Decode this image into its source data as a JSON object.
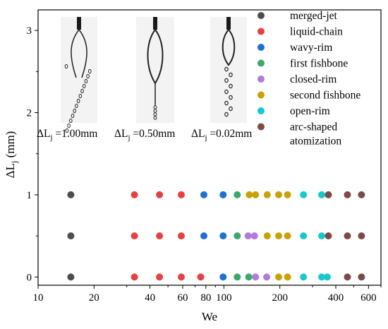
{
  "chart_data": {
    "type": "scatter",
    "xlabel": "We",
    "ylabel": {
      "main": "ΔL",
      "sub": "j",
      "unit": " (mm)"
    },
    "x_scale": "log",
    "xlim": [
      10,
      700
    ],
    "ylim": [
      -0.1,
      3.25
    ],
    "x_ticks": [
      10,
      20,
      40,
      60,
      80,
      100,
      200,
      400,
      600
    ],
    "x_tick_labels": [
      "10",
      "20",
      "40",
      "60",
      "80",
      "100",
      "200",
      "400",
      "600"
    ],
    "y_ticks": [
      0,
      1,
      2,
      3
    ],
    "y_tick_labels": [
      "0",
      "1",
      "2",
      "3"
    ],
    "legend_position": "top-right",
    "series": [
      {
        "name": "merged-jet",
        "color": "#4d4d4d",
        "points": [
          [
            15,
            1
          ],
          [
            15,
            0.5
          ],
          [
            15,
            0
          ]
        ]
      },
      {
        "name": "liquid-chain",
        "color": "#e84040",
        "points": [
          [
            33,
            1
          ],
          [
            45,
            1
          ],
          [
            59,
            1
          ],
          [
            33,
            0.5
          ],
          [
            45,
            0.5
          ],
          [
            59,
            0.5
          ],
          [
            33,
            0
          ],
          [
            45,
            0
          ],
          [
            59,
            0
          ],
          [
            75,
            0
          ]
        ]
      },
      {
        "name": "wavy-rim",
        "color": "#1f6fd8",
        "points": [
          [
            78,
            1
          ],
          [
            99,
            1
          ],
          [
            78,
            0.5
          ],
          [
            99,
            0.5
          ],
          [
            99,
            0
          ]
        ]
      },
      {
        "name": "first fishbone",
        "color": "#3aa86b",
        "points": [
          [
            118,
            1
          ],
          [
            118,
            0.5
          ],
          [
            118,
            0
          ],
          [
            136,
            0
          ]
        ]
      },
      {
        "name": "closed-rim",
        "color": "#b27ad9",
        "points": [
          [
            135,
            0.5
          ],
          [
            146,
            0.5
          ],
          [
            148,
            0
          ],
          [
            170,
            0
          ]
        ]
      },
      {
        "name": "second fishbone",
        "color": "#c9a209",
        "points": [
          [
            137,
            1
          ],
          [
            148,
            1
          ],
          [
            171,
            1
          ],
          [
            197,
            1
          ],
          [
            220,
            1
          ],
          [
            171,
            0.5
          ],
          [
            197,
            0.5
          ],
          [
            220,
            0.5
          ],
          [
            197,
            0
          ],
          [
            220,
            0
          ]
        ]
      },
      {
        "name": "open-rim",
        "color": "#17c9cc",
        "points": [
          [
            268,
            1
          ],
          [
            336,
            1
          ],
          [
            268,
            0.5
          ],
          [
            336,
            0.5
          ],
          [
            268,
            0
          ],
          [
            336,
            0
          ],
          [
            360,
            0
          ]
        ]
      },
      {
        "name": "arc-shaped atomization",
        "legend_lines": [
          "arc-shaped",
          "atomization"
        ],
        "color": "#7d4a4a",
        "points": [
          [
            365,
            1
          ],
          [
            462,
            1
          ],
          [
            550,
            1
          ],
          [
            365,
            0.5
          ],
          [
            462,
            0.5
          ],
          [
            550,
            0.5
          ],
          [
            462,
            0
          ],
          [
            550,
            0
          ]
        ]
      }
    ],
    "annotations": [
      {
        "text": "ΔL",
        "sub": "j",
        "suffix": " =1.00mm"
      },
      {
        "text": "ΔL",
        "sub": "j",
        "suffix": " =0.50mm"
      },
      {
        "text": "ΔL",
        "sub": "j",
        "suffix": " =0.02mm"
      }
    ]
  }
}
